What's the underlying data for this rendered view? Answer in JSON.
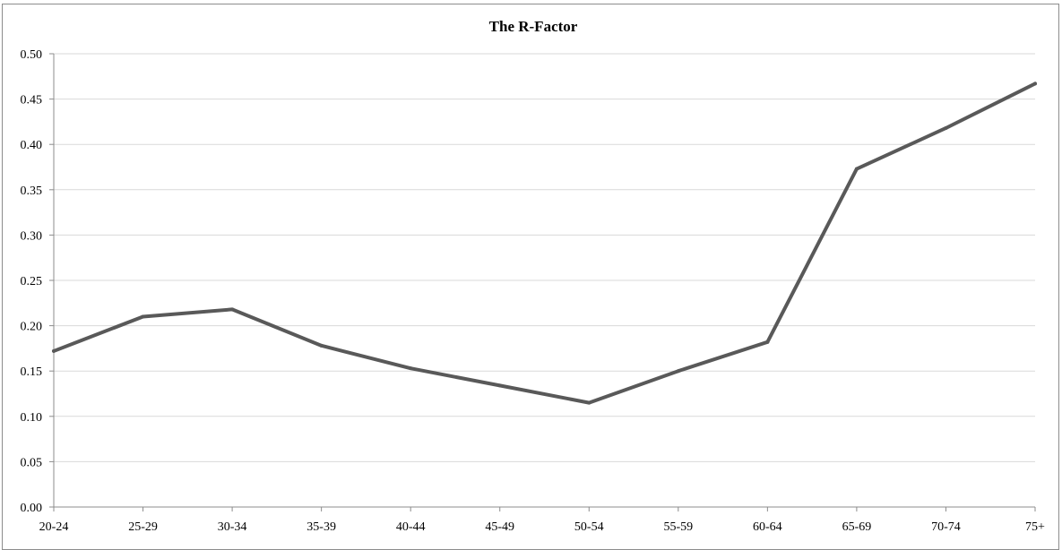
{
  "chart_data": {
    "type": "line",
    "title": "The R-Factor",
    "xlabel": "",
    "ylabel": "",
    "categories": [
      "20-24",
      "25-29",
      "30-34",
      "35-39",
      "40-44",
      "45-49",
      "50-54",
      "55-59",
      "60-64",
      "65-69",
      "70-74",
      "75+"
    ],
    "series": [
      {
        "values": [
          0.172,
          0.21,
          0.218,
          0.178,
          0.153,
          0.134,
          0.115,
          0.15,
          0.182,
          0.373,
          0.418,
          0.467
        ]
      }
    ],
    "ylim": [
      0,
      0.5
    ],
    "yticks": [
      "0.00",
      "0.05",
      "0.10",
      "0.15",
      "0.20",
      "0.25",
      "0.30",
      "0.35",
      "0.40",
      "0.45",
      "0.50"
    ],
    "grid": true,
    "legend": "none",
    "colors": {
      "line": "#595959",
      "grid": "#d9d9d9",
      "axis": "#8c8c8c"
    }
  }
}
